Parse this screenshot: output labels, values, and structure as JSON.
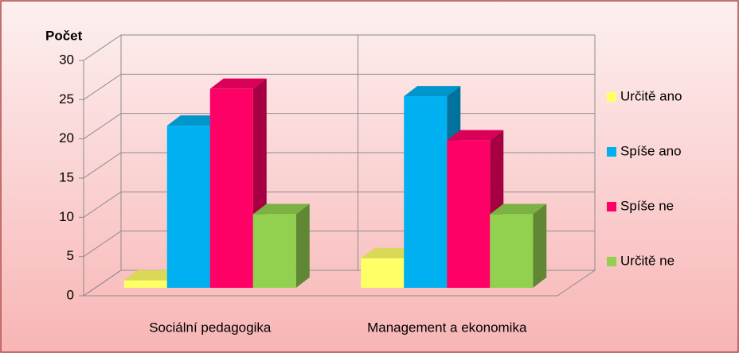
{
  "chart_data": {
    "type": "bar3d",
    "y_axis_label": "Počet",
    "categories": [
      "Sociální pedagogika",
      "Management a ekonomika"
    ],
    "series": [
      {
        "name": "Určitě ano",
        "color": "#ffff66",
        "values": [
          1,
          4
        ]
      },
      {
        "name": "Spíše ano",
        "color": "#00b0f0",
        "values": [
          22,
          26
        ]
      },
      {
        "name": "Spíše ne",
        "color": "#ff0066",
        "values": [
          27,
          20
        ]
      },
      {
        "name": "Určitě ne",
        "color": "#92d050",
        "values": [
          10,
          10
        ]
      }
    ],
    "ylim": [
      0,
      30
    ],
    "yticks": [
      0,
      5,
      10,
      15,
      20,
      25,
      30
    ],
    "grid": true,
    "legend": "right"
  }
}
